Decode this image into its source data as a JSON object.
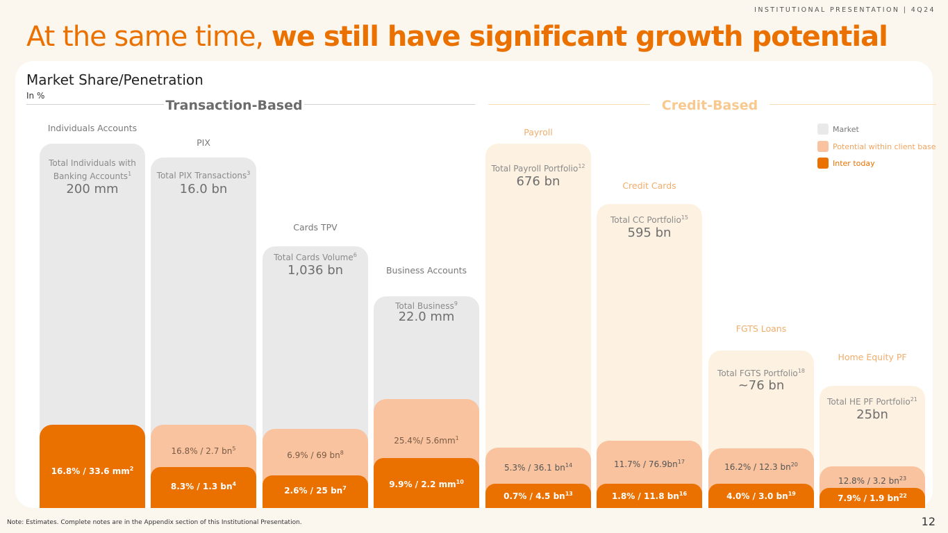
{
  "header": {
    "tag": "INSTITUTIONAL PRESENTATION | 4Q24"
  },
  "title": {
    "light": "At the same time, ",
    "bold": "we still have significant growth potential"
  },
  "market_title": "Market Share/Penetration",
  "market_subtitle": "In %",
  "sections": {
    "transaction": "Transaction-Based",
    "credit": "Credit-Based"
  },
  "legend": [
    {
      "label": "Market",
      "color": "#e9e9e9",
      "text_color": "#777777"
    },
    {
      "label": "Potential within client base",
      "color": "#f8c39e",
      "text_color": "#f1a45f"
    },
    {
      "label": "Inter today",
      "color": "#ea7100",
      "text_color": "#ea7100"
    }
  ],
  "colors": {
    "accent": "#ea7100",
    "market_transaction": "#e9e9e9",
    "market_credit": "#fdf2e1",
    "potential": "#f8c39e",
    "inter_today": "#ea7100"
  },
  "chart_data": {
    "type": "bar",
    "title": "Market Share/Penetration",
    "unit": "In %",
    "series": [
      {
        "name": "Market"
      },
      {
        "name": "Potential within client base"
      },
      {
        "name": "Inter today"
      }
    ],
    "categories": [
      {
        "name": "Individuals Accounts",
        "group": "Transaction-Based",
        "total_label": "Total Individuals with Banking Accounts",
        "total_sup": "1",
        "total_value": "200 mm",
        "potential_label": "",
        "potential_sup": "",
        "today_label": "16.8% / 33.6 mm",
        "today_sup": "2"
      },
      {
        "name": "PIX",
        "group": "Transaction-Based",
        "total_label": "Total PIX Transactions",
        "total_sup": "3",
        "total_value": "16.0 bn",
        "potential_label": "16.8% / 2.7 bn",
        "potential_sup": "5",
        "today_label": "8.3% / 1.3 bn",
        "today_sup": "4"
      },
      {
        "name": "Cards TPV",
        "group": "Transaction-Based",
        "total_label": "Total Cards Volume",
        "total_sup": "6",
        "total_value": "1,036 bn",
        "potential_label": "6.9% / 69 bn",
        "potential_sup": "8",
        "today_label": "2.6% / 25 bn",
        "today_sup": "7"
      },
      {
        "name": "Business Accounts",
        "group": "Transaction-Based",
        "total_label": "Total Business",
        "total_sup": "9",
        "total_value": "22.0 mm",
        "potential_label": "25.4%/ 5.6mm",
        "potential_sup": "1",
        "today_label": "9.9% / 2.2 mm",
        "today_sup": "10"
      },
      {
        "name": "Payroll",
        "group": "Credit-Based",
        "total_label": "Total Payroll Portfolio",
        "total_sup": "12",
        "total_value": "676 bn",
        "potential_label": "5.3% / 36.1 bn",
        "potential_sup": "14",
        "today_label": "0.7% / 4.5 bn",
        "today_sup": "13"
      },
      {
        "name": "Credit Cards",
        "group": "Credit-Based",
        "total_label": "Total CC Portfolio",
        "total_sup": "15",
        "total_value": "595 bn",
        "potential_label": "11.7% / 76.9bn",
        "potential_sup": "17",
        "today_label": "1.8% / 11.8 bn",
        "today_sup": "16"
      },
      {
        "name": "FGTS Loans",
        "group": "Credit-Based",
        "total_label": "Total FGTS Portfolio",
        "total_sup": "18",
        "total_value": "~76 bn",
        "potential_label": "16.2% / 12.3 bn",
        "potential_sup": "20",
        "today_label": "4.0% / 3.0 bn",
        "today_sup": "19"
      },
      {
        "name": "Home Equity PF",
        "group": "Credit-Based",
        "total_label": "Total HE PF Portfolio",
        "total_sup": "21",
        "total_value": "25bn",
        "potential_label": "12.8% / 3.2 bn",
        "potential_sup": "23",
        "today_label": "7.9% / 1.9 bn",
        "today_sup": "22"
      }
    ]
  },
  "footer": {
    "note": "Note: Estimates. Complete notes are in the Appendix section of this Institutional Presentation.",
    "page": "12"
  }
}
